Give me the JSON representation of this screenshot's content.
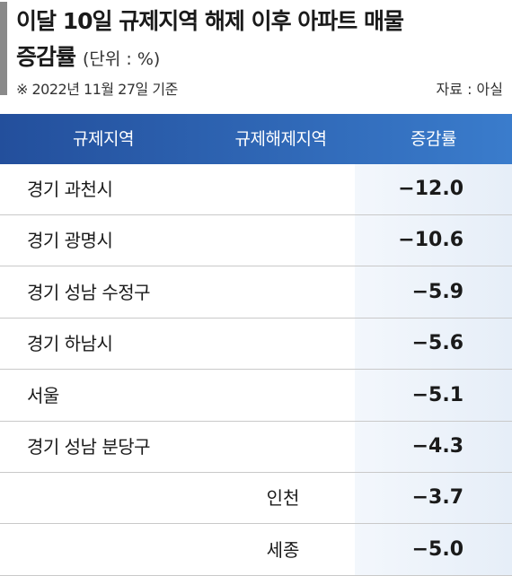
{
  "header": {
    "title": "이달 10일 규제지역 해제 이후 아파트 매물",
    "title2": "증감률",
    "unit": "(단위 : %)",
    "note": "※ 2022년 11월 27일 기준",
    "source": "자료 : 아실"
  },
  "table": {
    "columns": [
      "규제지역",
      "규제해제지역",
      "증감률"
    ],
    "rows": [
      [
        "경기 과천시",
        null,
        "−12.0"
      ],
      [
        "경기 광명시",
        null,
        "−10.6"
      ],
      [
        "경기 성남 수정구",
        null,
        "−5.9"
      ],
      [
        "경기 하남시",
        null,
        "−5.6"
      ],
      [
        "서울",
        null,
        "−5.1"
      ],
      [
        "경기 성남 분당구",
        null,
        "−4.3"
      ],
      [
        null,
        "인천",
        "−3.7"
      ],
      [
        null,
        "세종",
        "−5.0"
      ]
    ]
  }
}
